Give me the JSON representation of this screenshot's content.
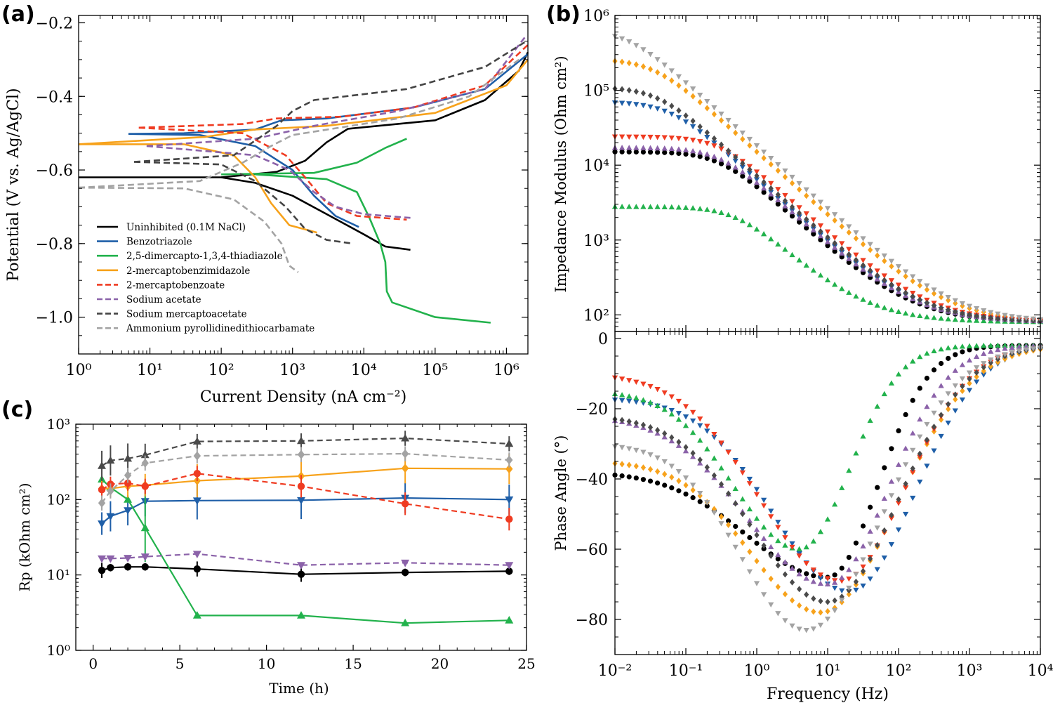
{
  "chart_data": [
    {
      "type": "line",
      "panel": "(a)",
      "xlabel": "Current Density (nA cm⁻²)",
      "ylabel": "Potential (V vs. Ag/AgCl)",
      "xscale": "log",
      "xlim": [
        1,
        2000000
      ],
      "ylim": [
        -1.1,
        -0.18
      ],
      "xticks": [
        "10⁰",
        "10¹",
        "10²",
        "10³",
        "10⁴",
        "10⁵",
        "10⁶"
      ],
      "yticks": [
        "−0.2",
        "−0.4",
        "−0.6",
        "−0.8",
        "−1.0"
      ],
      "legend_position": "lower-left",
      "series": [
        {
          "name": "Uninhibited (0.1M NaCl)",
          "color": "#000000",
          "dash": false,
          "cathodic": [
            [
              1,
              -0.62
            ],
            [
              100,
              -0.62
            ],
            [
              300,
              -0.635
            ],
            [
              1000,
              -0.67
            ],
            [
              3000,
              -0.72
            ],
            [
              10000,
              -0.775
            ],
            [
              20000,
              -0.808
            ],
            [
              45000,
              -0.817
            ]
          ],
          "anodic": [
            [
              100,
              -0.62
            ],
            [
              600,
              -0.605
            ],
            [
              1500,
              -0.575
            ],
            [
              3000,
              -0.525
            ],
            [
              6000,
              -0.488
            ],
            [
              100000,
              -0.465
            ],
            [
              500000,
              -0.41
            ],
            [
              1500000,
              -0.33
            ],
            [
              2000000,
              -0.28
            ]
          ]
        },
        {
          "name": "Benzotriazole",
          "color": "#1f5fa8",
          "dash": false,
          "cathodic": [
            [
              5,
              -0.502
            ],
            [
              50,
              -0.505
            ],
            [
              300,
              -0.535
            ],
            [
              1000,
              -0.6
            ],
            [
              2000,
              -0.67
            ],
            [
              4000,
              -0.725
            ],
            [
              8500,
              -0.755
            ]
          ],
          "anodic": [
            [
              5,
              -0.502
            ],
            [
              30,
              -0.5
            ],
            [
              300,
              -0.49
            ],
            [
              700,
              -0.465
            ],
            [
              3000,
              -0.46
            ],
            [
              50000,
              -0.43
            ],
            [
              500000,
              -0.38
            ],
            [
              2000000,
              -0.285
            ]
          ]
        },
        {
          "name": "2,5-dimercapto-1,3,4-thiadiazole",
          "color": "#22b24c",
          "dash": false,
          "cathodic": [
            [
              300,
              -0.612
            ],
            [
              3000,
              -0.625
            ],
            [
              8000,
              -0.66
            ],
            [
              12000,
              -0.73
            ],
            [
              17000,
              -0.8
            ],
            [
              20000,
              -0.85
            ],
            [
              21000,
              -0.93
            ],
            [
              25000,
              -0.96
            ],
            [
              100000,
              -1.0
            ],
            [
              600000,
              -1.015
            ]
          ],
          "anodic": [
            [
              100,
              -0.612
            ],
            [
              2000,
              -0.608
            ],
            [
              8000,
              -0.58
            ],
            [
              20000,
              -0.54
            ],
            [
              40000,
              -0.515
            ]
          ]
        },
        {
          "name": "2-mercaptobenzimidazole",
          "color": "#f7a21b",
          "dash": false,
          "cathodic": [
            [
              1,
              -0.53
            ],
            [
              30,
              -0.53
            ],
            [
              150,
              -0.56
            ],
            [
              300,
              -0.62
            ],
            [
              500,
              -0.69
            ],
            [
              900,
              -0.75
            ],
            [
              2200,
              -0.77
            ]
          ],
          "anodic": [
            [
              1,
              -0.53
            ],
            [
              60,
              -0.51
            ],
            [
              300,
              -0.49
            ],
            [
              3000,
              -0.48
            ],
            [
              100000,
              -0.445
            ],
            [
              1000000,
              -0.37
            ],
            [
              2000000,
              -0.3
            ]
          ]
        },
        {
          "name": "2-mercaptobenzoate",
          "color": "#ef3b21",
          "dash": true,
          "cathodic": [
            [
              7,
              -0.485
            ],
            [
              200,
              -0.5
            ],
            [
              800,
              -0.56
            ],
            [
              1500,
              -0.62
            ],
            [
              3000,
              -0.69
            ],
            [
              8000,
              -0.725
            ],
            [
              40000,
              -0.735
            ]
          ],
          "anodic": [
            [
              7,
              -0.485
            ],
            [
              200,
              -0.475
            ],
            [
              600,
              -0.46
            ],
            [
              5000,
              -0.455
            ],
            [
              50000,
              -0.43
            ],
            [
              500000,
              -0.37
            ],
            [
              2000000,
              -0.26
            ]
          ]
        },
        {
          "name": "Sodium acetate",
          "color": "#8b62a9",
          "dash": true,
          "cathodic": [
            [
              9,
              -0.535
            ],
            [
              300,
              -0.56
            ],
            [
              900,
              -0.6
            ],
            [
              2000,
              -0.66
            ],
            [
              4000,
              -0.7
            ],
            [
              10000,
              -0.72
            ],
            [
              45000,
              -0.73
            ]
          ],
          "anodic": [
            [
              9,
              -0.535
            ],
            [
              300,
              -0.515
            ],
            [
              2000,
              -0.48
            ],
            [
              30000,
              -0.44
            ],
            [
              500000,
              -0.38
            ],
            [
              1800000,
              -0.24
            ]
          ]
        },
        {
          "name": "Sodium mercaptoacetate",
          "color": "#444444",
          "dash": true,
          "cathodic": [
            [
              6,
              -0.578
            ],
            [
              100,
              -0.585
            ],
            [
              300,
              -0.63
            ],
            [
              800,
              -0.7
            ],
            [
              1500,
              -0.76
            ],
            [
              3000,
              -0.79
            ],
            [
              7000,
              -0.8
            ]
          ],
          "anodic": [
            [
              6,
              -0.578
            ],
            [
              150,
              -0.56
            ],
            [
              300,
              -0.52
            ],
            [
              600,
              -0.48
            ],
            [
              1000,
              -0.44
            ],
            [
              2000,
              -0.41
            ],
            [
              40000,
              -0.38
            ],
            [
              500000,
              -0.32
            ],
            [
              1900000,
              -0.25
            ]
          ]
        },
        {
          "name": "Ammonium pyrollidinedithiocarbamate",
          "color": "#a3a3a3",
          "dash": true,
          "cathodic": [
            [
              1,
              -0.648
            ],
            [
              30,
              -0.65
            ],
            [
              150,
              -0.68
            ],
            [
              400,
              -0.74
            ],
            [
              700,
              -0.8
            ],
            [
              900,
              -0.86
            ],
            [
              1200,
              -0.878
            ]
          ],
          "anodic": [
            [
              1,
              -0.648
            ],
            [
              50,
              -0.63
            ],
            [
              200,
              -0.58
            ],
            [
              500,
              -0.535
            ],
            [
              1000,
              -0.505
            ],
            [
              30000,
              -0.46
            ],
            [
              300000,
              -0.4
            ],
            [
              1500000,
              -0.3
            ]
          ]
        }
      ]
    },
    {
      "type": "scatter",
      "panel": "(b)",
      "xlabel": "Frequency (Hz)",
      "ylabel_top": "Impedance Modulus (Ohm cm²)",
      "ylabel_bottom": "Phase Angle (°)",
      "xscale": "log",
      "xlim": [
        0.01,
        10000
      ],
      "ylim_top": [
        60,
        1000000
      ],
      "ylim_bottom": [
        -90,
        2
      ],
      "xticks": [
        "10⁻²",
        "10⁻¹",
        "10⁰",
        "10¹",
        "10²",
        "10³",
        "10⁴"
      ],
      "yticks_top": [
        "10²",
        "10³",
        "10⁴",
        "10⁵",
        "10⁶"
      ],
      "yticks_bottom": [
        "0",
        "−20",
        "−40",
        "−60",
        "−80"
      ],
      "series": [
        {
          "name": "Uninhibited (0.1M NaCl)",
          "color": "#000000",
          "marker": "circle",
          "R": 15000,
          "wc": 0.3,
          "Rs": 80,
          "ph": {
            "lf": -38,
            "min": -68,
            "fmin": 10,
            "left": 1.6,
            "right": 1.0
          }
        },
        {
          "name": "Benzotriazole",
          "color": "#1f5fa8",
          "marker": "tri-down",
          "R": 70000,
          "wc": 0.06,
          "Rs": 80,
          "ph": {
            "lf": -17,
            "min": -72,
            "fmin": 20,
            "left": 1.5,
            "right": 1.3
          }
        },
        {
          "name": "2,5-dimercapto-1,3,4-thiadiazole",
          "color": "#22b24c",
          "marker": "tri-up",
          "R": 2700,
          "wc": 0.5,
          "Rs": 80,
          "ph": {
            "lf": -15,
            "min": -60,
            "fmin": 4,
            "left": 1.3,
            "right": 1.0
          }
        },
        {
          "name": "2-mercaptobenzimidazole",
          "color": "#f7a21b",
          "marker": "diamond",
          "R": 260000,
          "wc": 0.035,
          "Rs": 80,
          "ph": {
            "lf": -35,
            "min": -78,
            "fmin": 8,
            "left": 1.4,
            "right": 1.5
          }
        },
        {
          "name": "2-mercaptobenzoate",
          "color": "#ef3b21",
          "marker": "tri-down",
          "R": 24000,
          "wc": 0.3,
          "Rs": 80,
          "ph": {
            "lf": -10,
            "min": -69,
            "fmin": 15,
            "left": 1.6,
            "right": 1.3
          }
        },
        {
          "name": "Sodium acetate",
          "color": "#8b62a9",
          "marker": "tri-up",
          "R": 17000,
          "wc": 0.3,
          "Rs": 80,
          "ph": {
            "lf": -22,
            "min": -70,
            "fmin": 10,
            "left": 1.6,
            "right": 1.2
          }
        },
        {
          "name": "Sodium mercaptoacetate",
          "color": "#4a4a4a",
          "marker": "diamond",
          "R": 110000,
          "wc": 0.04,
          "Rs": 80,
          "ph": {
            "lf": -22,
            "min": -75,
            "fmin": 10,
            "left": 1.5,
            "right": 1.4
          }
        },
        {
          "name": "Ammonium pyrollidinedithiocarbamate",
          "color": "#a3a3a3",
          "marker": "tri-down",
          "R": 650000,
          "wc": 0.015,
          "Rs": 80,
          "ph": {
            "lf": -30,
            "min": -83,
            "fmin": 5,
            "left": 1.3,
            "right": 1.5
          }
        }
      ]
    },
    {
      "type": "line",
      "panel": "(c)",
      "xlabel": "Time (h)",
      "ylabel": "Rp (kOhm cm²)",
      "yscale": "log",
      "xlim": [
        -1,
        25
      ],
      "ylim": [
        1,
        1000
      ],
      "xticks": [
        "0",
        "5",
        "10",
        "15",
        "20",
        "25"
      ],
      "yticks": [
        "10⁰",
        "10¹",
        "10²",
        "10³"
      ],
      "x": [
        0.5,
        1,
        2,
        3,
        6,
        12,
        18,
        24
      ],
      "series": [
        {
          "name": "Uninhibited (0.1M NaCl)",
          "color": "#000000",
          "dash": false,
          "marker": "circle",
          "values": [
            11.5,
            12.5,
            12.8,
            12.8,
            12,
            10.2,
            10.8,
            11.2
          ],
          "err": [
            0.1,
            0.05,
            0.05,
            0.05,
            0.1,
            0.1,
            0.05,
            0.05
          ]
        },
        {
          "name": "Benzotriazole",
          "color": "#1f5fa8",
          "dash": false,
          "marker": "tri-down",
          "values": [
            48,
            60,
            72,
            95,
            97,
            98,
            105,
            100
          ],
          "err": [
            0.15,
            0.2,
            0.2,
            0.2,
            0.25,
            0.25,
            0.2,
            0.2
          ]
        },
        {
          "name": "2,5-dimercapto-1,3,4-thiadiazole",
          "color": "#22b24c",
          "dash": false,
          "marker": "tri-up",
          "values": [
            185,
            145,
            100,
            42,
            2.9,
            2.9,
            2.3,
            2.5
          ],
          "err": [
            0,
            0,
            0,
            0.45,
            0,
            0,
            0,
            0
          ]
        },
        {
          "name": "2-mercaptobenzimidazole",
          "color": "#f7a21b",
          "dash": false,
          "marker": "diamond",
          "values": [
            140,
            140,
            150,
            155,
            178,
            205,
            260,
            255
          ],
          "err": [
            0.15,
            0.12,
            0.15,
            0.15,
            0.22,
            0.2,
            0.2,
            0.2
          ]
        },
        {
          "name": "2-mercaptobenzoate",
          "color": "#ef3b21",
          "dash": true,
          "marker": "circle",
          "values": [
            135,
            160,
            165,
            150,
            222,
            150,
            88,
            55
          ],
          "err": [
            0.1,
            0.1,
            0.1,
            0.1,
            0.1,
            0.15,
            0.15,
            0.15
          ]
        },
        {
          "name": "Sodium acetate",
          "color": "#8b62a9",
          "dash": true,
          "marker": "tri-down",
          "values": [
            16.5,
            16.5,
            16.8,
            17.5,
            19,
            13.5,
            14.5,
            13.5
          ],
          "err": [
            0,
            0,
            0,
            0,
            0,
            0,
            0,
            0
          ]
        },
        {
          "name": "Sodium mercaptoacetate",
          "color": "#4a4a4a",
          "dash": true,
          "marker": "tri-up",
          "values": [
            280,
            330,
            350,
            390,
            590,
            600,
            650,
            550
          ],
          "err": [
            0.2,
            0.2,
            0.2,
            0.15,
            0.1,
            0.1,
            0.1,
            0.1
          ]
        },
        {
          "name": "Ammonium pyrollidinedithiocarbamate",
          "color": "#a3a3a3",
          "dash": true,
          "marker": "diamond",
          "values": [
            90,
            130,
            210,
            305,
            380,
            395,
            405,
            335
          ],
          "err": [
            0.1,
            0.1,
            0.1,
            0.1,
            0.1,
            0.1,
            0.1,
            0.1
          ]
        }
      ]
    }
  ]
}
